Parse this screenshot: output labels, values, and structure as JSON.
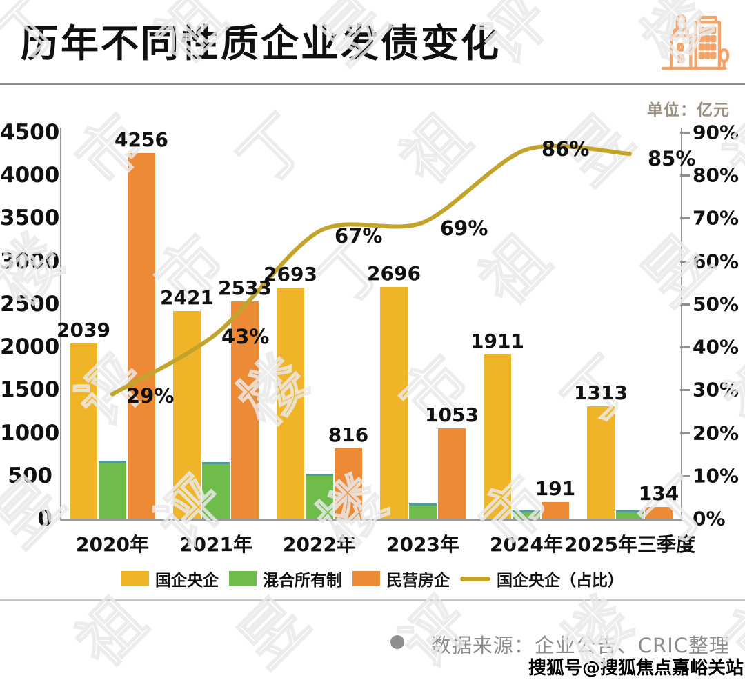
{
  "header": {
    "title": "历年不同性质企业发债变化"
  },
  "chart": {
    "unit_label": "单位：亿元"
  },
  "chart_data": {
    "type": "bar",
    "title": "历年不同性质企业发债变化",
    "unit": "亿元",
    "categories": [
      "2020年",
      "2021年",
      "2022年",
      "2023年",
      "2024年",
      "2025年三季度"
    ],
    "series": [
      {
        "key": "soe-central",
        "name": "国企央企",
        "type": "bar",
        "axis": "left",
        "color": "#F0B429",
        "values": [
          2039,
          2421,
          2693,
          2696,
          1911,
          1313
        ],
        "show_value_labels": true
      },
      {
        "key": "mixed-ownership",
        "name": "混合所有制",
        "type": "bar",
        "axis": "left",
        "color": "#6FBC4B",
        "values": [
          675,
          655,
          520,
          175,
          95,
          95
        ],
        "show_value_labels": false,
        "estimated": true
      },
      {
        "key": "private-developer",
        "name": "民营房企",
        "type": "bar",
        "axis": "left",
        "color": "#ED8A35",
        "values": [
          4256,
          2533,
          816,
          1053,
          191,
          134
        ],
        "show_value_labels": true
      },
      {
        "key": "soe-share",
        "name": "国企央企（占比）",
        "type": "line",
        "axis": "right",
        "color": "#C2A32B",
        "values": [
          29,
          43,
          67,
          69,
          86,
          85
        ],
        "labels": [
          "29%",
          "43%",
          "67%",
          "69%",
          "86%",
          "85%"
        ],
        "show_value_labels": true
      }
    ],
    "left_axis": {
      "min": 0,
      "max": 4500,
      "step": 500,
      "tick_labels": [
        "4500",
        "4000",
        "3500",
        "3000",
        "2500",
        "2000",
        "1500",
        "1000",
        "500",
        "0"
      ]
    },
    "right_axis": {
      "min": 0,
      "max": 90,
      "step": 10,
      "unit": "%",
      "tick_labels": [
        "90%",
        "80%",
        "70%",
        "60%",
        "50%",
        "40%",
        "30%",
        "20%",
        "10%",
        "0%"
      ]
    },
    "legend_position": "bottom",
    "grid": false
  },
  "footer": {
    "source_text": "数据来源：企业公告、CRIC整理",
    "account_text": "搜狐号@搜狐焦点嘉峪关站"
  },
  "watermark": {
    "text": "丁祖昱评楼市"
  }
}
